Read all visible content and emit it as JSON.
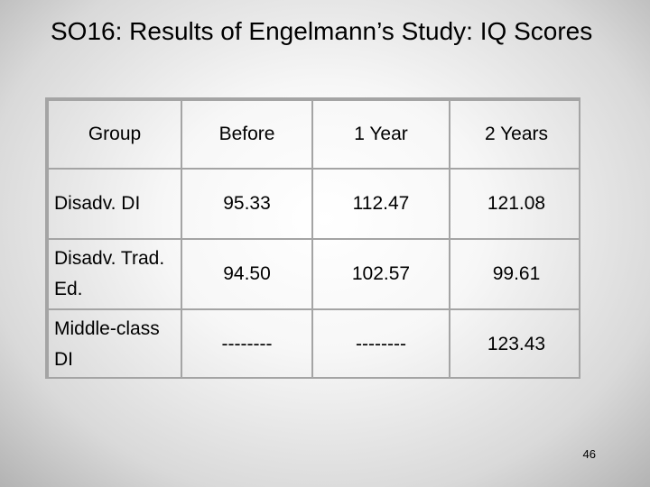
{
  "slide": {
    "title": "SO16: Results of Engelmann’s Study: IQ Scores",
    "page_number": "46",
    "border_color": "#a4a4a4"
  },
  "table": {
    "headers": [
      "Group",
      "Before",
      "1 Year",
      "2 Years"
    ],
    "rows": [
      {
        "group": "Disadv. DI",
        "before": "95.33",
        "year1": "112.47",
        "year2": "121.08"
      },
      {
        "group": "Disadv. Trad. Ed.",
        "before": "94.50",
        "year1": "102.57",
        "year2": "99.61"
      },
      {
        "group": "Middle-class DI",
        "before": "--------",
        "year1": "--------",
        "year2": "123.43"
      }
    ]
  }
}
